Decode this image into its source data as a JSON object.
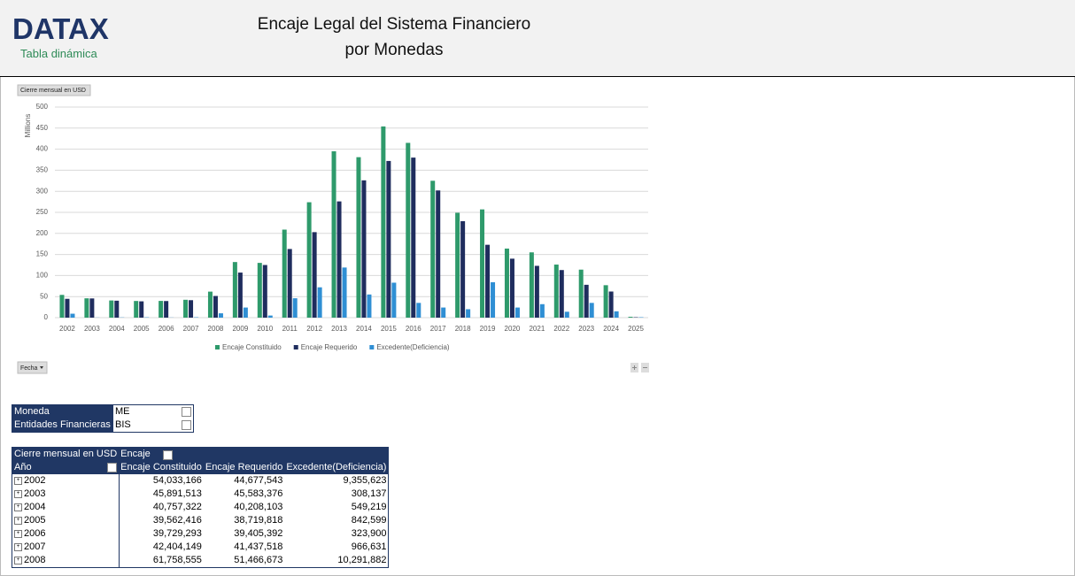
{
  "header": {
    "logo": "DATAX",
    "subtitle": "Tabla dinámica",
    "title_lines": [
      "Encaje Legal del Sistema Financiero",
      "por Monedas"
    ]
  },
  "chart_data": {
    "type": "bar",
    "field_buttons": {
      "value": "Cierre mensual en USD",
      "axis": "Fecha"
    },
    "ylabel": "Millions",
    "categories": [
      "2002",
      "2003",
      "2004",
      "2005",
      "2006",
      "2007",
      "2008",
      "2009",
      "2010",
      "2011",
      "2012",
      "2013",
      "2014",
      "2015",
      "2016",
      "2017",
      "2018",
      "2019",
      "2020",
      "2021",
      "2022",
      "2023",
      "2024",
      "2025"
    ],
    "series": [
      {
        "name": "Encaje Constituido",
        "color": "#2e9a6b",
        "values": [
          54.03,
          45.89,
          40.76,
          39.56,
          39.73,
          42.4,
          61.76,
          132,
          130,
          209,
          274,
          395,
          381,
          454,
          415,
          325,
          249,
          257,
          164,
          155,
          126,
          114,
          77,
          2
        ]
      },
      {
        "name": "Encaje Requerido",
        "color": "#1f2d5e",
        "values": [
          44.68,
          45.58,
          40.21,
          38.72,
          39.41,
          41.44,
          51.47,
          107,
          125,
          163,
          203,
          276,
          326,
          372,
          380,
          302,
          229,
          173,
          140,
          123,
          113,
          78,
          62,
          1
        ]
      },
      {
        "name": "Excedente(Deficiencia)",
        "color": "#2f8fd4",
        "values": [
          9.36,
          0.31,
          0.55,
          0.84,
          0.32,
          0.97,
          10.29,
          24,
          5,
          46,
          72,
          119,
          55,
          83,
          35,
          24,
          20,
          84,
          24,
          32,
          14,
          35,
          15,
          1
        ]
      }
    ],
    "ylim": [
      0,
      500
    ],
    "yticks": [
      0,
      50,
      100,
      150,
      200,
      250,
      300,
      350,
      400,
      450,
      500
    ],
    "grid": true,
    "legend": "bottom"
  },
  "filters": [
    [
      "Moneda",
      "ME"
    ],
    [
      "Entidades Financieras",
      "BIS"
    ]
  ],
  "pivot": {
    "header": [
      "Cierre mensual en USD",
      "Encaje"
    ],
    "columns": [
      "Año",
      "Encaje Constituido",
      "Encaje Requerido",
      "Excedente(Deficiencia)"
    ],
    "rows": [
      [
        "2002",
        "54,033,166",
        "44,677,543",
        "9,355,623"
      ],
      [
        "2003",
        "45,891,513",
        "45,583,376",
        "308,137"
      ],
      [
        "2004",
        "40,757,322",
        "40,208,103",
        "549,219"
      ],
      [
        "2005",
        "39,562,416",
        "38,719,818",
        "842,599"
      ],
      [
        "2006",
        "39,729,293",
        "39,405,392",
        "323,900"
      ],
      [
        "2007",
        "42,404,149",
        "41,437,518",
        "966,631"
      ],
      [
        "2008",
        "61,758,555",
        "51,466,673",
        "10,291,882"
      ]
    ]
  }
}
